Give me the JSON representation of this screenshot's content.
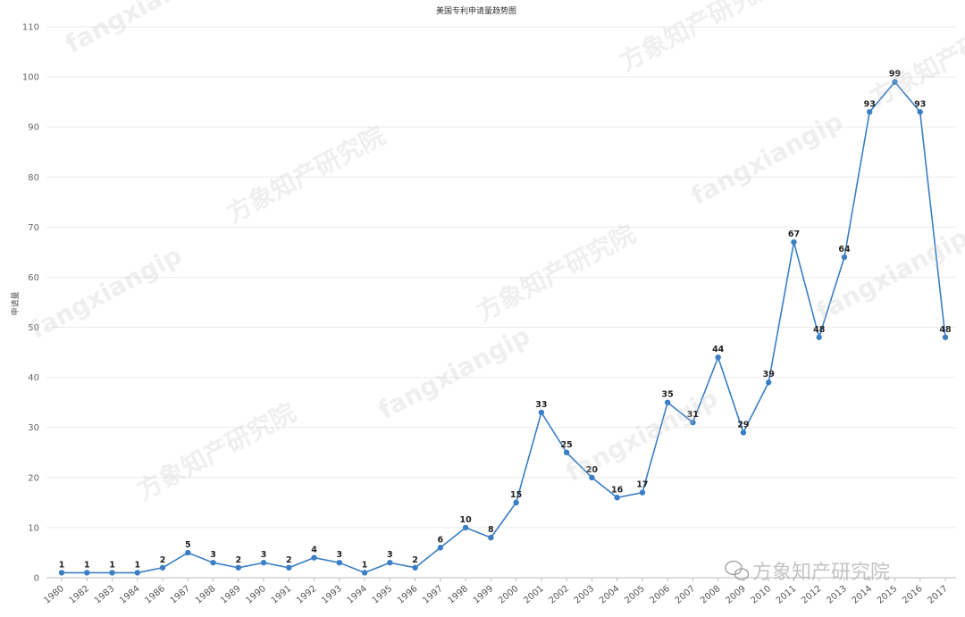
{
  "chart_data": {
    "type": "line",
    "title": "美国专利申请量趋势图",
    "ylabel": "申请量",
    "xlabel": "",
    "ylim": [
      0,
      110
    ],
    "yticks": [
      0,
      10,
      20,
      30,
      40,
      50,
      60,
      70,
      80,
      90,
      100,
      110
    ],
    "grid": true,
    "legend": "none",
    "color": "#3a7ec4",
    "x": [
      "1980",
      "1982",
      "1983",
      "1984",
      "1986",
      "1987",
      "1988",
      "1989",
      "1990",
      "1991",
      "1992",
      "1993",
      "1994",
      "1995",
      "1996",
      "1997",
      "1998",
      "1999",
      "2000",
      "2001",
      "2002",
      "2003",
      "2004",
      "2005",
      "2006",
      "2007",
      "2008",
      "2009",
      "2010",
      "2011",
      "2012",
      "2013",
      "2014",
      "2015",
      "2016",
      "2017"
    ],
    "values": [
      1,
      1,
      1,
      1,
      2,
      5,
      3,
      2,
      3,
      2,
      4,
      3,
      1,
      3,
      2,
      6,
      10,
      8,
      15,
      33,
      25,
      20,
      16,
      17,
      35,
      31,
      44,
      29,
      39,
      67,
      48,
      64,
      93,
      99,
      93,
      48
    ],
    "watermark": {
      "repeat_text_cn": "方象知产研究院",
      "repeat_text_en": "fangxiangip",
      "corner_text": "方象知产研究院"
    }
  }
}
